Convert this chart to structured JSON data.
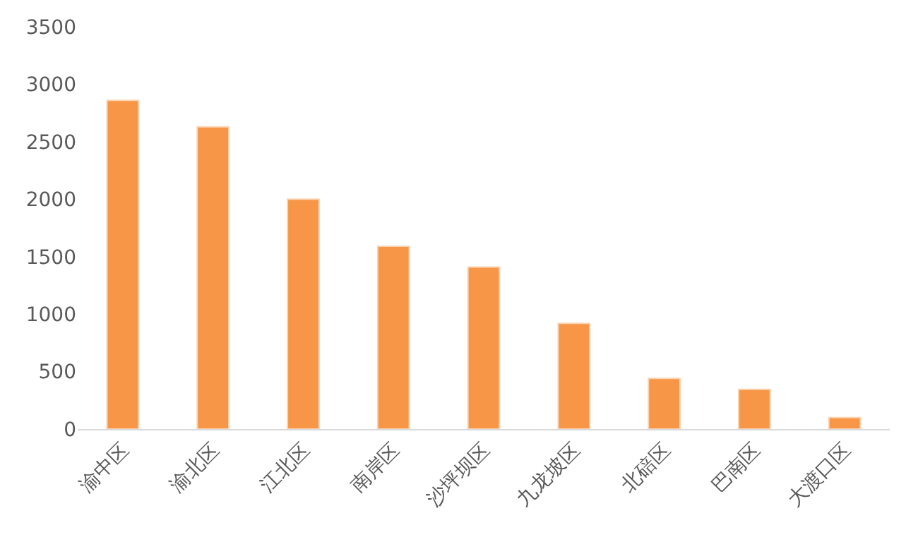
{
  "chart_data": {
    "type": "bar",
    "categories": [
      "渝中区",
      "渝北区",
      "江北区",
      "南岸区",
      "沙坪坝区",
      "九龙坡区",
      "北碚区",
      "巴南区",
      "大渡口区"
    ],
    "values": [
      2860,
      2630,
      2000,
      1590,
      1410,
      920,
      440,
      345,
      100
    ],
    "color": "#f79646",
    "ylim": [
      0,
      3500
    ],
    "yticks": [
      0,
      500,
      1000,
      1500,
      2000,
      2500,
      3000,
      3500
    ],
    "grid": false,
    "legend": false
  }
}
